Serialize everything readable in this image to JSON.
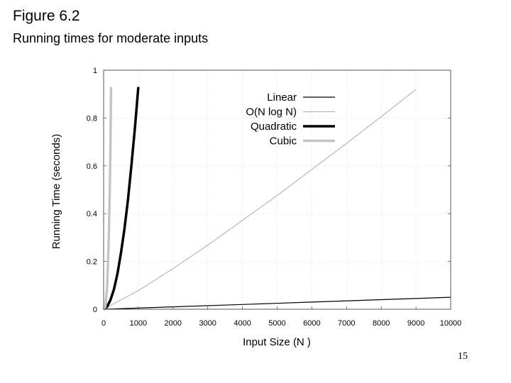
{
  "figure": {
    "title": "Figure 6.2",
    "subtitle": "Running times for moderate inputs",
    "page_number": "15"
  },
  "chart_data": {
    "type": "line",
    "xlabel": "Input Size (N )",
    "ylabel": "Running Time (seconds)",
    "xlim": [
      0,
      10000
    ],
    "ylim": [
      0,
      1
    ],
    "x_ticks": [
      "0",
      "1000",
      "2000",
      "3000",
      "4000",
      "5000",
      "6000",
      "7000",
      "8000",
      "9000",
      "10000"
    ],
    "y_ticks": [
      "0",
      "0.2",
      "0.4",
      "0.6",
      "0.8",
      "1"
    ],
    "grid": true,
    "legend_position": "top-right",
    "series": [
      {
        "name": "Linear",
        "color": "#000000",
        "width": 1.2,
        "x": [
          0,
          2000,
          4000,
          6000,
          8000,
          10000
        ],
        "y": [
          0,
          0.01,
          0.02,
          0.03,
          0.04,
          0.05
        ]
      },
      {
        "name": "O(N log N)",
        "color": "#b8b8b8",
        "width": 1.2,
        "x": [
          0,
          1000,
          2000,
          3000,
          4000,
          5000,
          6000,
          7000,
          8000,
          9000
        ],
        "y": [
          0,
          0.078,
          0.17,
          0.268,
          0.372,
          0.476,
          0.585,
          0.694,
          0.806,
          0.92
        ]
      },
      {
        "name": "Quadratic",
        "color": "#000000",
        "width": 3.5,
        "x": [
          0,
          100,
          200,
          300,
          400,
          500,
          600,
          700,
          800,
          900,
          1000
        ],
        "y": [
          0,
          0.01,
          0.04,
          0.085,
          0.15,
          0.235,
          0.335,
          0.455,
          0.6,
          0.755,
          0.93
        ]
      },
      {
        "name": "Cubic",
        "color": "#c4c4c4",
        "width": 3.5,
        "x": [
          0,
          50,
          100,
          150,
          180,
          200,
          215
        ],
        "y": [
          0,
          0.01,
          0.09,
          0.3,
          0.52,
          0.72,
          0.93
        ]
      }
    ]
  }
}
